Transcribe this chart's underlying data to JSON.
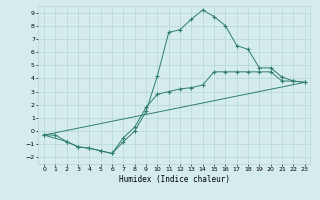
{
  "title": "",
  "xlabel": "Humidex (Indice chaleur)",
  "xlim": [
    -0.5,
    23.5
  ],
  "ylim": [
    -2.5,
    9.5
  ],
  "xticks": [
    0,
    1,
    2,
    3,
    4,
    5,
    6,
    7,
    8,
    9,
    10,
    11,
    12,
    13,
    14,
    15,
    16,
    17,
    18,
    19,
    20,
    21,
    22,
    23
  ],
  "yticks": [
    -2,
    -1,
    0,
    1,
    2,
    3,
    4,
    5,
    6,
    7,
    8,
    9
  ],
  "bg_color": "#d4ecee",
  "grid_color": "#b8d4d8",
  "line_color": "#2e7d6e",
  "curve1_x": [
    0,
    1,
    2,
    3,
    4,
    5,
    6,
    7,
    8,
    9,
    10,
    11,
    12,
    13,
    14,
    15,
    16,
    17,
    18,
    19,
    20,
    21,
    22,
    23
  ],
  "curve1_y": [
    -0.3,
    -0.3,
    -0.8,
    -1.2,
    -1.3,
    -1.5,
    -1.7,
    -0.8,
    0.0,
    1.5,
    4.2,
    7.5,
    7.7,
    8.5,
    9.2,
    8.7,
    8.0,
    6.5,
    6.2,
    4.8,
    4.8,
    4.1,
    3.8,
    3.7
  ],
  "curve2_x": [
    0,
    2,
    3,
    4,
    5,
    6,
    7,
    8,
    9,
    10,
    11,
    12,
    13,
    14,
    15,
    16,
    17,
    18,
    19,
    20,
    21,
    22,
    23
  ],
  "curve2_y": [
    -0.3,
    -0.8,
    -1.2,
    -1.3,
    -1.5,
    -1.7,
    -0.5,
    0.3,
    1.8,
    2.8,
    3.0,
    3.2,
    3.3,
    3.5,
    4.5,
    4.5,
    4.5,
    4.5,
    4.5,
    4.5,
    3.8,
    3.8,
    3.7
  ],
  "line_x": [
    0,
    23
  ],
  "line_y": [
    -0.3,
    3.7
  ]
}
